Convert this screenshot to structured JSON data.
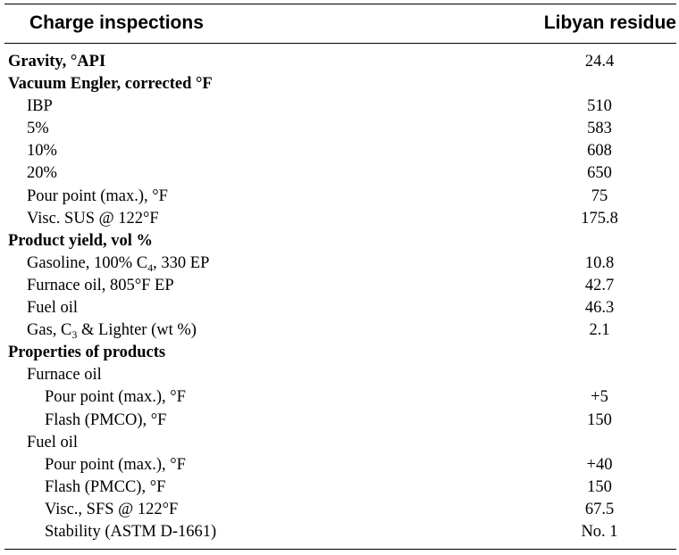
{
  "table": {
    "header": {
      "label_column": "Charge inspections",
      "value_column": "Libyan residue"
    },
    "rows": [
      {
        "level": 0,
        "label": "Gravity, °API",
        "value": "24.4"
      },
      {
        "level": 0,
        "label": "Vacuum Engler, corrected °F",
        "value": ""
      },
      {
        "level": 1,
        "label": "IBP",
        "value": "510"
      },
      {
        "level": 1,
        "label": "5%",
        "value": "583"
      },
      {
        "level": 1,
        "label": "10%",
        "value": "608"
      },
      {
        "level": 1,
        "label": "20%",
        "value": "650"
      },
      {
        "level": 1,
        "label": "Pour point (max.), °F",
        "value": "75"
      },
      {
        "level": 1,
        "label": "Visc. SUS @ 122°F",
        "value": "175.8"
      },
      {
        "level": 0,
        "label": "Product yield, vol %",
        "value": ""
      },
      {
        "level": 1,
        "label": "Gasoline, 100% C",
        "sub": "4",
        "label_after": ", 330 EP",
        "value": "10.8"
      },
      {
        "level": 1,
        "label": "Furnace oil, 805°F EP",
        "value": "42.7"
      },
      {
        "level": 1,
        "label": "Fuel oil",
        "value": "46.3"
      },
      {
        "level": 1,
        "label": "Gas, C",
        "sub": "3",
        "label_after": " & Lighter (wt %)",
        "value": "2.1"
      },
      {
        "level": 0,
        "label": "Properties of products",
        "value": ""
      },
      {
        "level": 1,
        "label": "Furnace oil",
        "value": ""
      },
      {
        "level": 2,
        "label": "Pour point (max.), °F",
        "value": "+5"
      },
      {
        "level": 2,
        "label": "Flash (PMCO), °F",
        "value": "150"
      },
      {
        "level": 1,
        "label": "Fuel oil",
        "value": ""
      },
      {
        "level": 2,
        "label": "Pour point (max.), °F",
        "value": "+40"
      },
      {
        "level": 2,
        "label": "Flash (PMCC), °F",
        "value": "150"
      },
      {
        "level": 2,
        "label": "Visc., SFS @ 122°F",
        "value": "67.5"
      },
      {
        "level": 2,
        "label": "Stability (ASTM D-1661)",
        "value": "No. 1"
      }
    ]
  }
}
